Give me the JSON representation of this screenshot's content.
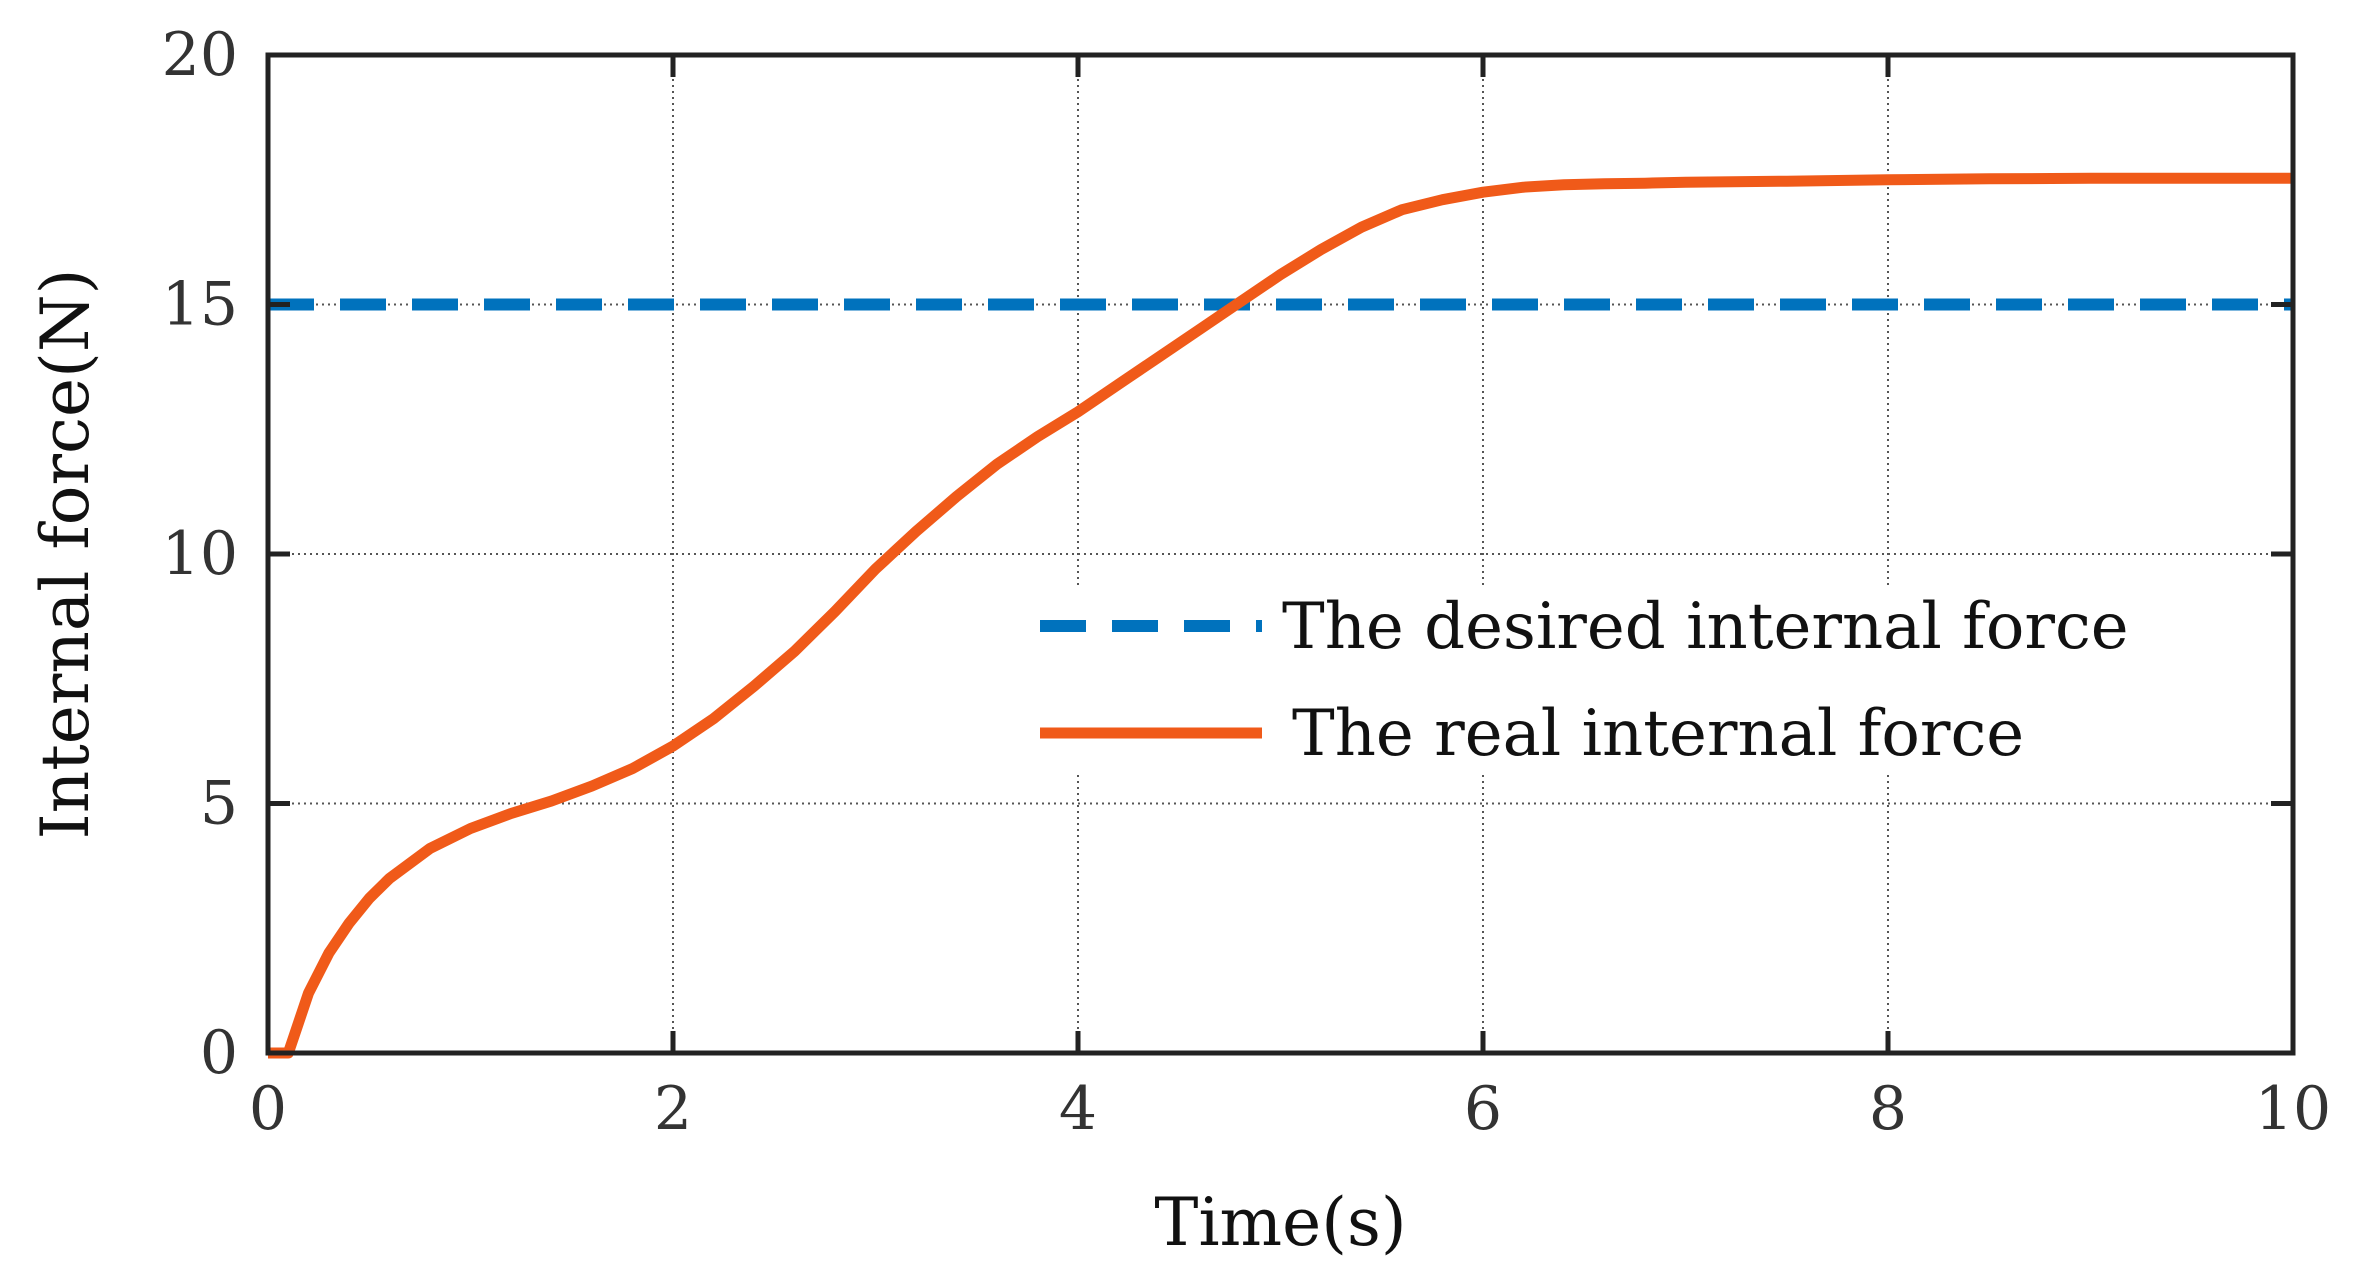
{
  "chart_data": {
    "type": "line",
    "title": "",
    "xlabel": "Time(s)",
    "ylabel": "Internal force(N)",
    "xlim": [
      0,
      10
    ],
    "ylim": [
      0,
      20
    ],
    "x_ticks": [
      "0",
      "2",
      "4",
      "6",
      "8",
      "10"
    ],
    "y_ticks": [
      "0",
      "5",
      "10",
      "15",
      "20"
    ],
    "grid": true,
    "legend_position": "center-right",
    "series": [
      {
        "name": "The desired internal force",
        "style": "dashed",
        "color": "#0072BD",
        "x": [
          0,
          10
        ],
        "y": [
          15,
          15
        ]
      },
      {
        "name": "The real internal force",
        "style": "solid",
        "color": "#F05A19",
        "x": [
          0,
          0.05,
          0.1,
          0.15,
          0.2,
          0.3,
          0.4,
          0.5,
          0.6,
          0.8,
          1.0,
          1.2,
          1.4,
          1.6,
          1.8,
          2.0,
          2.2,
          2.4,
          2.6,
          2.8,
          3.0,
          3.2,
          3.4,
          3.6,
          3.8,
          4.0,
          4.2,
          4.4,
          4.6,
          4.8,
          5.0,
          5.2,
          5.4,
          5.6,
          5.8,
          6.0,
          6.2,
          6.4,
          6.6,
          6.8,
          7.0,
          7.5,
          8.0,
          8.5,
          9.0,
          9.5,
          10.0
        ],
        "y": [
          0,
          0,
          0,
          0.6,
          1.2,
          2.0,
          2.6,
          3.1,
          3.5,
          4.1,
          4.5,
          4.8,
          5.05,
          5.35,
          5.7,
          6.15,
          6.7,
          7.35,
          8.05,
          8.85,
          9.7,
          10.45,
          11.15,
          11.8,
          12.35,
          12.85,
          13.4,
          13.95,
          14.5,
          15.05,
          15.6,
          16.1,
          16.55,
          16.9,
          17.1,
          17.25,
          17.35,
          17.4,
          17.42,
          17.43,
          17.45,
          17.47,
          17.5,
          17.52,
          17.53,
          17.53,
          17.53
        ]
      }
    ]
  }
}
